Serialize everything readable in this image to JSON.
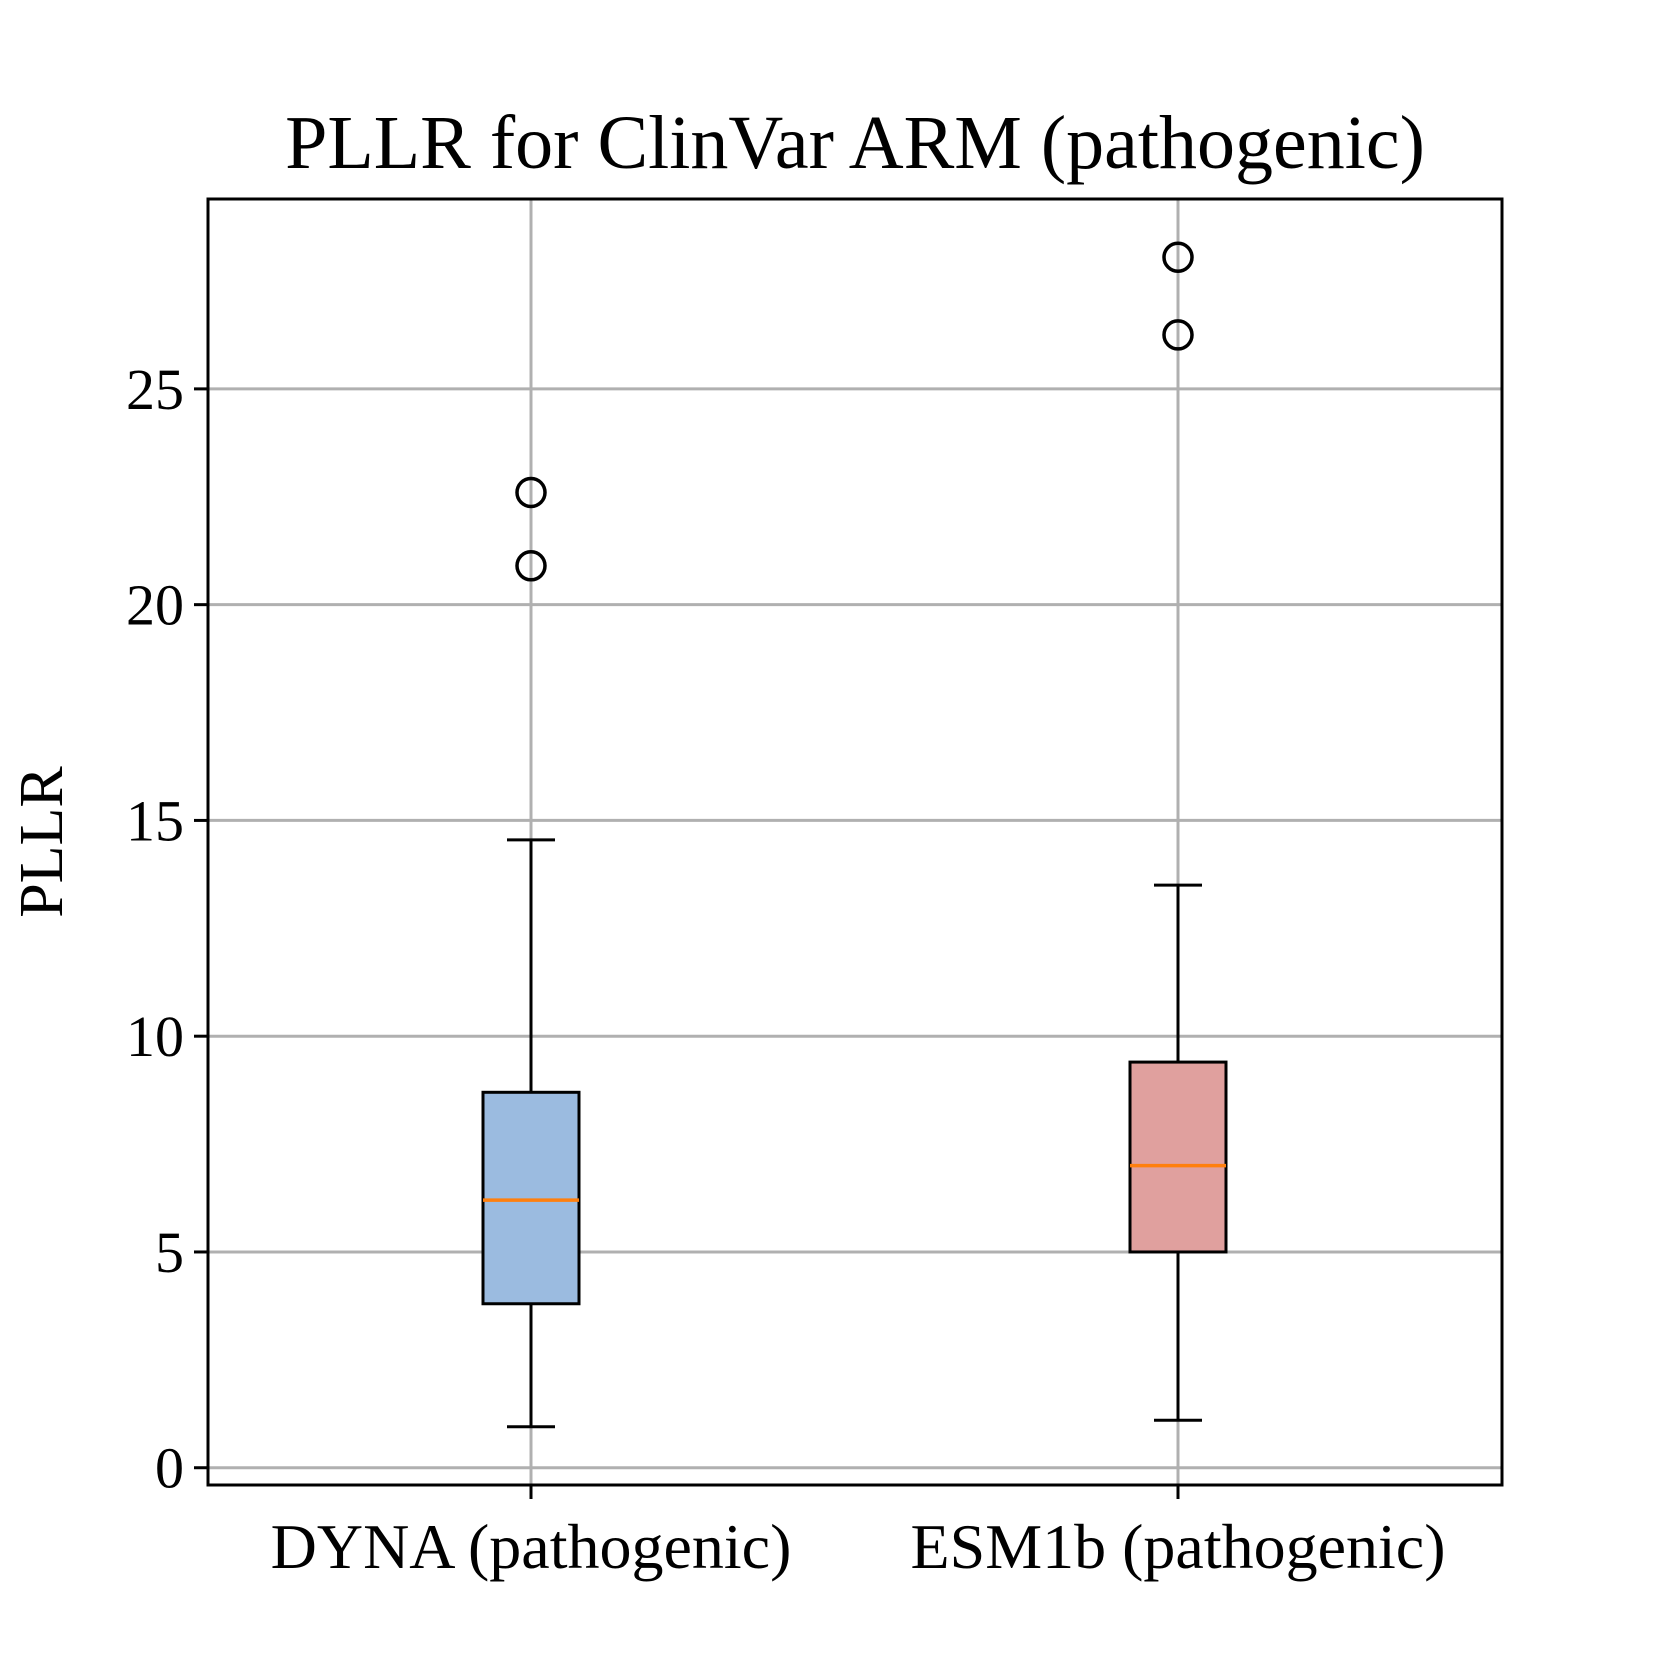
{
  "chart_data": {
    "type": "box",
    "title": "PLLR for ClinVar ARM (pathogenic)",
    "xlabel": "",
    "ylabel": "PLLR",
    "ylim": [
      -0.4,
      29.4
    ],
    "yticks": [
      0,
      5,
      10,
      15,
      20,
      25
    ],
    "grid": true,
    "categories": [
      "DYNA (pathogenic)",
      "ESM1b (pathogenic)"
    ],
    "series": [
      {
        "whisker_low": 0.95,
        "q1": 3.8,
        "median": 6.2,
        "q3": 8.7,
        "whisker_high": 14.55,
        "outliers": [
          20.9,
          22.6
        ],
        "fill": "#9bbbe0"
      },
      {
        "whisker_low": 1.1,
        "q1": 5.0,
        "median": 7.0,
        "q3": 9.4,
        "whisker_high": 13.5,
        "outliers": [
          26.25,
          28.05
        ],
        "fill": "#e0a09e"
      }
    ],
    "colors": {
      "median": "#ff7f0e",
      "grid": "#b0b0b0",
      "stroke": "#000000"
    }
  }
}
